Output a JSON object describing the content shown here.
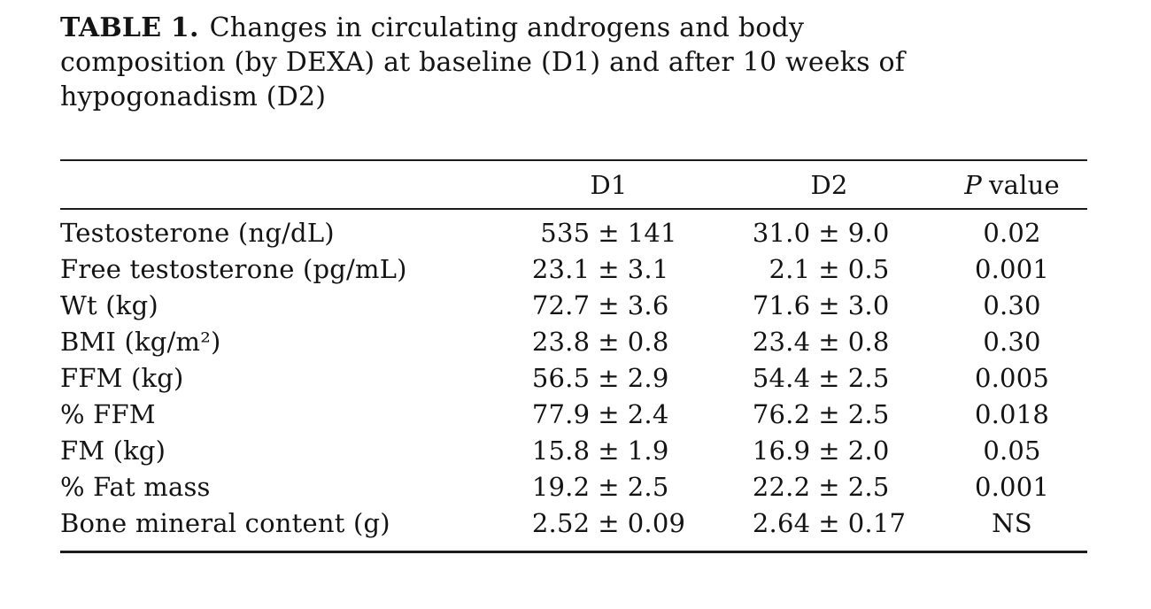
{
  "page": {
    "background": "#ffffff",
    "text_color": "#141414",
    "rule_color": "#1c1c1c"
  },
  "caption": {
    "label": "TABLE 1.",
    "lines": [
      "Changes in circulating androgens and body",
      "composition (by DEXA) at baseline (D1) and after 10 weeks of",
      "hypogonadism (D2)"
    ]
  },
  "symbols": {
    "plus_minus": "±"
  },
  "table": {
    "header": {
      "label_col": "",
      "d1": "D1",
      "d2": "D2",
      "p_italic": "P",
      "p_rest": "value"
    },
    "rows": [
      {
        "label": "Testosterone (ng/dL)",
        "d1": {
          "mean": "535",
          "sd": "141"
        },
        "d2": {
          "mean": "31.0",
          "sd": "9.0"
        },
        "p": "0.02"
      },
      {
        "label": "Free testosterone (pg/mL)",
        "d1": {
          "mean": "23.1",
          "sd": "3.1"
        },
        "d2": {
          "mean": "2.1",
          "sd": "0.5"
        },
        "p": "0.001"
      },
      {
        "label": "Wt (kg)",
        "d1": {
          "mean": "72.7",
          "sd": "3.6"
        },
        "d2": {
          "mean": "71.6",
          "sd": "3.0"
        },
        "p": "0.30"
      },
      {
        "label": "BMI (kg/m²)",
        "d1": {
          "mean": "23.8",
          "sd": "0.8"
        },
        "d2": {
          "mean": "23.4",
          "sd": "0.8"
        },
        "p": "0.30"
      },
      {
        "label": "FFM (kg)",
        "d1": {
          "mean": "56.5",
          "sd": "2.9"
        },
        "d2": {
          "mean": "54.4",
          "sd": "2.5"
        },
        "p": "0.005"
      },
      {
        "label": "% FFM",
        "d1": {
          "mean": "77.9",
          "sd": "2.4"
        },
        "d2": {
          "mean": "76.2",
          "sd": "2.5"
        },
        "p": "0.018"
      },
      {
        "label": "FM (kg)",
        "d1": {
          "mean": "15.8",
          "sd": "1.9"
        },
        "d2": {
          "mean": "16.9",
          "sd": "2.0"
        },
        "p": "0.05"
      },
      {
        "label": "% Fat mass",
        "d1": {
          "mean": "19.2",
          "sd": "2.5"
        },
        "d2": {
          "mean": "22.2",
          "sd": "2.5"
        },
        "p": "0.001"
      },
      {
        "label": "Bone mineral content (g)",
        "d1": {
          "mean": "2.52",
          "sd": "0.09"
        },
        "d2": {
          "mean": "2.64",
          "sd": "0.17"
        },
        "p": "NS"
      }
    ]
  }
}
